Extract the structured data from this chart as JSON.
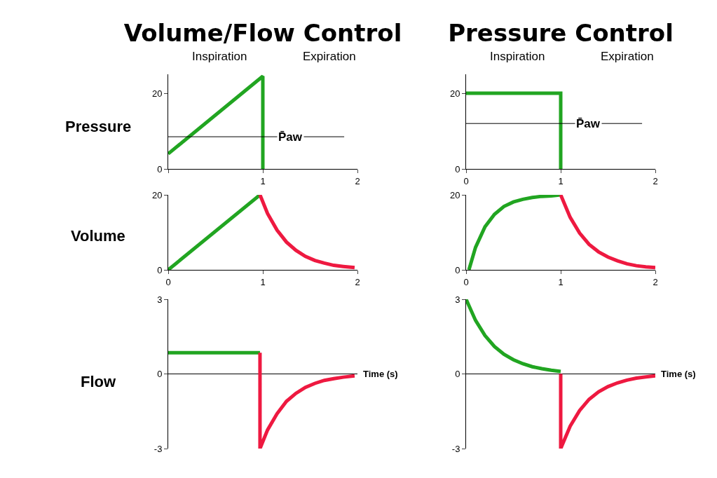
{
  "chart_data": [
    {
      "type": "line",
      "title": "Volume/Flow Control",
      "ylabel": "Pressure",
      "annotations": [
        "Inspiration",
        "Expiration"
      ],
      "xlim": [
        0,
        2
      ],
      "ylim": [
        0,
        25
      ],
      "xticks": [
        {
          "value": 0,
          "label": null
        },
        1,
        2
      ],
      "yticks": [
        0,
        20
      ],
      "ref_lines": [
        {
          "axis": "y",
          "value": 8.5,
          "label": "P̄aw"
        }
      ],
      "series": [
        {
          "color": "#21a521",
          "x": [
            0,
            1,
            1
          ],
          "values": [
            4,
            24.5,
            0
          ]
        }
      ]
    },
    {
      "type": "line",
      "title": "Pressure Control",
      "annotations": [
        "Inspiration",
        "Expiration"
      ],
      "xlim": [
        0,
        2
      ],
      "ylim": [
        0,
        25
      ],
      "xticks": [
        0,
        1,
        2
      ],
      "yticks": [
        0,
        20
      ],
      "ref_lines": [
        {
          "axis": "y",
          "value": 12,
          "label": "P̄aw"
        }
      ],
      "series": [
        {
          "color": "#21a521",
          "x": [
            0,
            1,
            1
          ],
          "values": [
            20,
            20,
            0
          ]
        }
      ]
    },
    {
      "type": "line",
      "ylabel": "Volume",
      "xlim": [
        0,
        2
      ],
      "ylim": [
        0,
        20
      ],
      "xticks": [
        0,
        1,
        2
      ],
      "yticks": [
        0,
        20
      ],
      "series": [
        {
          "color": "#21a521",
          "x": [
            0,
            0.97
          ],
          "values": [
            0,
            20
          ]
        },
        {
          "color": "#ee1940",
          "x": [
            0.97,
            1.05,
            1.15,
            1.25,
            1.35,
            1.45,
            1.55,
            1.65,
            1.75,
            1.85,
            1.97
          ],
          "values": [
            20,
            15,
            10.6,
            7.4,
            5.2,
            3.6,
            2.5,
            1.8,
            1.2,
            0.9,
            0.6
          ]
        }
      ]
    },
    {
      "type": "line",
      "xlim": [
        0,
        2
      ],
      "ylim": [
        0,
        20
      ],
      "xticks": [
        0,
        1,
        2
      ],
      "yticks": [
        0,
        20
      ],
      "series": [
        {
          "color": "#21a521",
          "x": [
            0.03,
            0.1,
            0.2,
            0.3,
            0.4,
            0.5,
            0.6,
            0.7,
            0.8,
            0.9,
            1.0
          ],
          "values": [
            0,
            6,
            11.5,
            14.8,
            16.9,
            18.1,
            18.8,
            19.3,
            19.6,
            19.7,
            20
          ]
        },
        {
          "color": "#ee1940",
          "x": [
            1.0,
            1.1,
            1.2,
            1.3,
            1.4,
            1.5,
            1.6,
            1.7,
            1.8,
            1.9,
            2.0
          ],
          "values": [
            20,
            14,
            9.8,
            6.8,
            4.8,
            3.4,
            2.4,
            1.6,
            1.1,
            0.8,
            0.6
          ]
        }
      ]
    },
    {
      "type": "line",
      "ylabel": "Flow",
      "xlabel": "Time (s)",
      "tick_labels": "y",
      "xlim": [
        0,
        2
      ],
      "ylim": [
        -3,
        3
      ],
      "yticks": [
        -3,
        0,
        3
      ],
      "series": [
        {
          "color": "#21a521",
          "x": [
            0,
            0.97
          ],
          "values": [
            0.85,
            0.85
          ]
        },
        {
          "color": "#ee1940",
          "x": [
            0.97,
            0.97,
            1.05,
            1.15,
            1.25,
            1.35,
            1.45,
            1.55,
            1.65,
            1.75,
            1.85,
            1.97
          ],
          "values": [
            0.85,
            -3,
            -2.25,
            -1.6,
            -1.1,
            -0.78,
            -0.54,
            -0.38,
            -0.26,
            -0.19,
            -0.13,
            -0.08
          ]
        }
      ]
    },
    {
      "type": "line",
      "xlabel": "Time (s)",
      "tick_labels": "y",
      "xlim": [
        0,
        2
      ],
      "ylim": [
        -3,
        3
      ],
      "yticks": [
        -3,
        0,
        3
      ],
      "series": [
        {
          "color": "#21a521",
          "x": [
            0,
            0.1,
            0.2,
            0.3,
            0.4,
            0.5,
            0.6,
            0.7,
            0.8,
            0.9,
            1.0
          ],
          "values": [
            3,
            2.15,
            1.54,
            1.1,
            0.79,
            0.57,
            0.41,
            0.29,
            0.21,
            0.15,
            0.1
          ]
        },
        {
          "color": "#ee1940",
          "x": [
            1,
            1,
            1.1,
            1.2,
            1.3,
            1.4,
            1.5,
            1.6,
            1.7,
            1.8,
            1.9,
            2.0
          ],
          "values": [
            0,
            -3,
            -2.1,
            -1.47,
            -1.02,
            -0.72,
            -0.51,
            -0.36,
            -0.25,
            -0.17,
            -0.12,
            -0.08
          ]
        }
      ]
    }
  ]
}
